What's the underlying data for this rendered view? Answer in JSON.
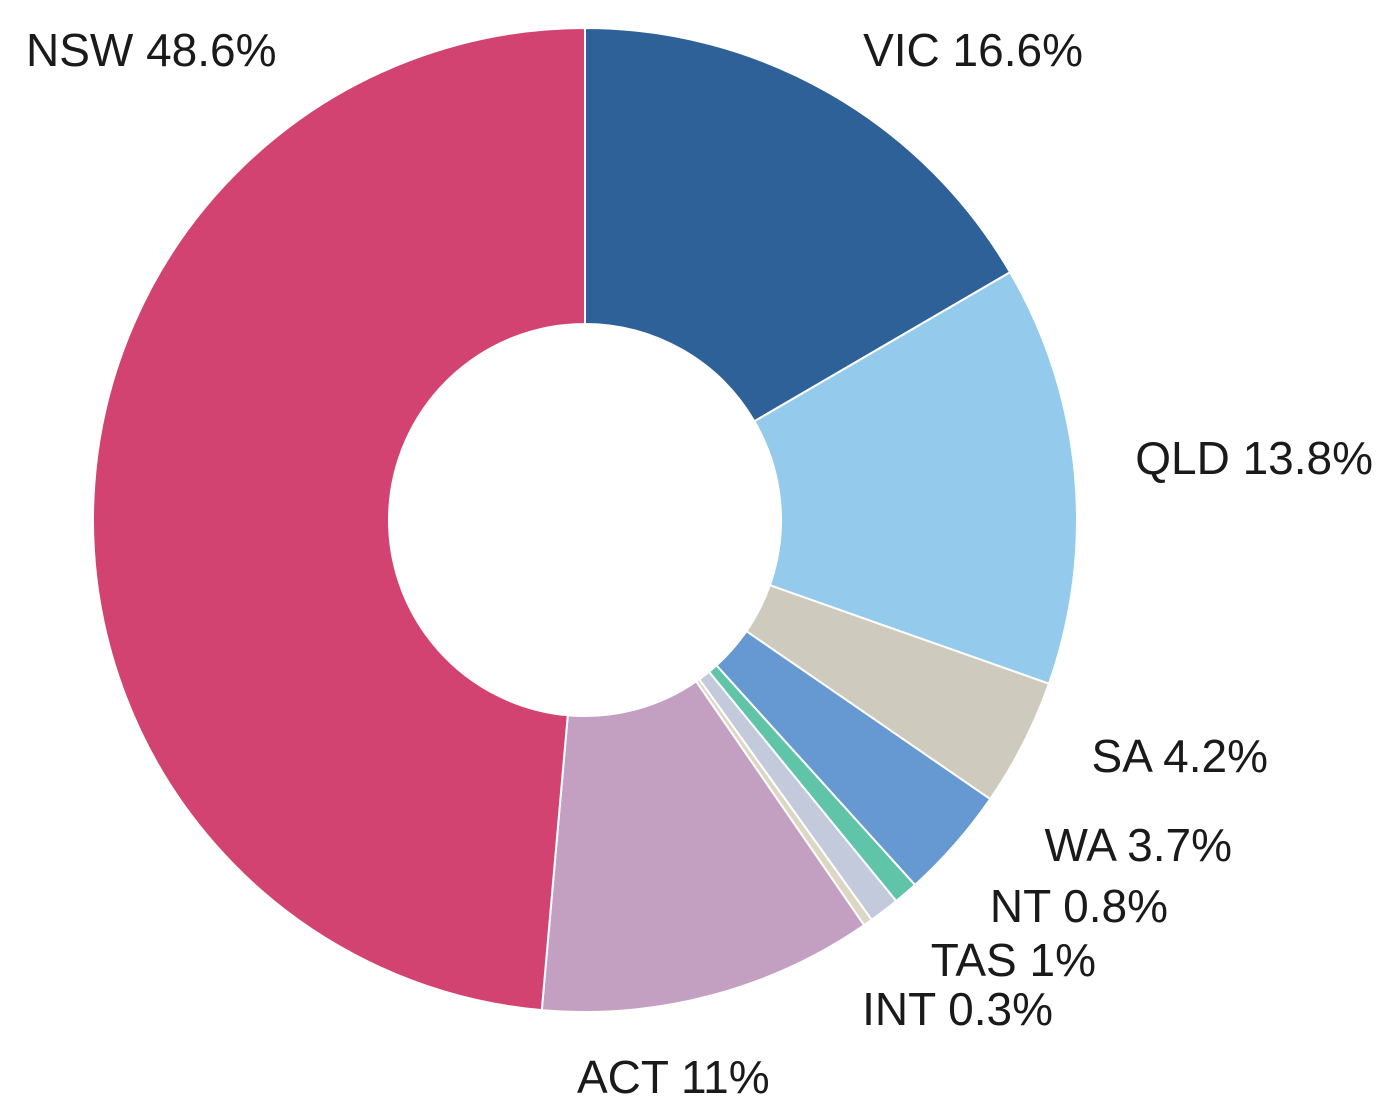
{
  "chart_data": {
    "type": "pie",
    "variant": "donut",
    "slices": [
      {
        "name": "VIC",
        "label": "VIC 16.6%",
        "value": 16.6,
        "color": "#2d6198"
      },
      {
        "name": "QLD",
        "label": "QLD 13.8%",
        "value": 13.8,
        "color": "#94cbed"
      },
      {
        "name": "SA",
        "label": "SA 4.2%",
        "value": 4.2,
        "color": "#cecbbe"
      },
      {
        "name": "WA",
        "label": "WA 3.7%",
        "value": 3.7,
        "color": "#6698d1"
      },
      {
        "name": "NT",
        "label": "NT 0.8%",
        "value": 0.8,
        "color": "#5fc4a8"
      },
      {
        "name": "TAS",
        "label": "TAS 1%",
        "value": 1.0,
        "color": "#c2cadc"
      },
      {
        "name": "INT",
        "label": "INT 0.3%",
        "value": 0.3,
        "color": "#dcd7c3"
      },
      {
        "name": "ACT",
        "label": "ACT 11%",
        "value": 11.0,
        "color": "#c3a0c2"
      },
      {
        "name": "NSW",
        "label": "NSW 48.6%",
        "value": 48.6,
        "color": "#d24372"
      }
    ],
    "start": "top",
    "direction": "clockwise",
    "legend": "none",
    "labels": "outside"
  }
}
